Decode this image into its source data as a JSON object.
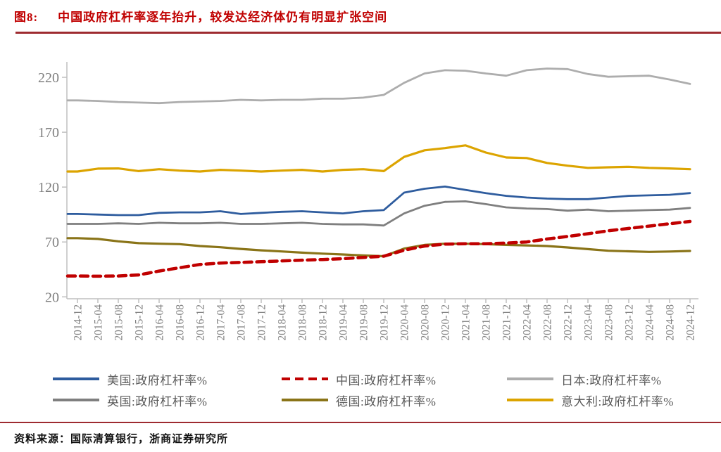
{
  "title": {
    "prefix": "图8:",
    "text": "中国政府杠杆率逐年抬升，较发达经济体仍有明显扩张空间"
  },
  "source": {
    "prefix": "资料来源：",
    "text": "国际清算银行，浙商证券研究所"
  },
  "colors": {
    "title_red": "#c00000",
    "rule_red": "#9e2b30",
    "axis_gray": "#bfbfbf",
    "tick_text_gray": "#7f7f7f",
    "legend_text_gray": "#595959"
  },
  "chart_data": {
    "type": "line",
    "title": "",
    "xlabel": "",
    "ylabel": "",
    "ylim": [
      20,
      220
    ],
    "yticks": [
      20,
      70,
      120,
      170,
      220
    ],
    "grid": false,
    "legend_position": "bottom",
    "x_labels": [
      "2014-12",
      "2015-04",
      "2015-08",
      "2015-12",
      "2016-04",
      "2016-08",
      "2016-12",
      "2017-04",
      "2017-08",
      "2017-12",
      "2018-04",
      "2018-08",
      "2018-12",
      "2019-04",
      "2019-08",
      "2019-12",
      "2020-04",
      "2020-08",
      "2020-12",
      "2021-04",
      "2021-08",
      "2021-12",
      "2022-04",
      "2022-08",
      "2022-12",
      "2023-04",
      "2023-08",
      "2023-12",
      "2024-04",
      "2024-08",
      "2024-12"
    ],
    "series": [
      {
        "key": "us",
        "name": "美国:政府杠杆率%",
        "color": "#2e5c9e",
        "width": 2.8,
        "dash": null,
        "values": [
          95.5,
          95,
          94.5,
          94.5,
          96.5,
          97,
          97,
          98,
          95.5,
          96.5,
          97.5,
          98,
          97,
          96,
          98,
          99,
          115,
          118.5,
          120.5,
          117.5,
          114.5,
          112,
          110.5,
          109.5,
          109,
          109,
          110.5,
          112,
          112.5,
          113,
          114.5
        ]
      },
      {
        "key": "china",
        "name": "中国:政府杠杆率%",
        "color": "#c00000",
        "width": 4.5,
        "dash": "11,7",
        "values": [
          39,
          38.8,
          39,
          40,
          43.5,
          46.5,
          49.5,
          50.8,
          51.4,
          52,
          52.7,
          53.4,
          54,
          54.8,
          55.9,
          57,
          62.5,
          66.3,
          68,
          68.4,
          68.4,
          69,
          70,
          72.7,
          75,
          77.5,
          80.2,
          82.4,
          84.5,
          86.6,
          88.7
        ]
      },
      {
        "key": "japan",
        "name": "日本:政府杠杆率%",
        "color": "#adadad",
        "width": 2.8,
        "dash": null,
        "values": [
          199,
          198.5,
          197.5,
          197,
          196.5,
          197.5,
          198,
          198.5,
          199.5,
          199,
          199.5,
          199.5,
          200.5,
          200.5,
          201.5,
          204,
          215,
          223.5,
          226.5,
          226,
          223.5,
          221.5,
          226.5,
          228,
          227.5,
          223,
          220.5,
          221,
          221.5,
          218,
          214
        ]
      },
      {
        "key": "uk",
        "name": "英国:政府杠杆率%",
        "color": "#7f7f7f",
        "width": 2.8,
        "dash": null,
        "values": [
          86.5,
          86.5,
          87,
          86.5,
          87.5,
          87,
          87,
          87.5,
          86.5,
          86.5,
          87,
          87.5,
          86.5,
          86,
          86,
          85,
          96,
          103,
          106.5,
          107,
          104.5,
          101.5,
          100.5,
          100,
          98.5,
          99.5,
          98,
          98.5,
          99,
          99.5,
          101
        ]
      },
      {
        "key": "germany",
        "name": "德国:政府杠杆率%",
        "color": "#8a7418",
        "width": 3.2,
        "dash": null,
        "values": [
          73.5,
          72.8,
          70.6,
          68.9,
          68.4,
          68,
          66.3,
          65.2,
          63.7,
          62.4,
          61.4,
          60.3,
          59.4,
          58.6,
          57.7,
          57,
          64,
          67.3,
          68.4,
          68.4,
          68,
          67.3,
          66.9,
          66.3,
          65,
          63.5,
          62,
          61.5,
          61,
          61.3,
          61.8
        ]
      },
      {
        "key": "italy",
        "name": "意大利:政府杠杆率%",
        "color": "#dca400",
        "width": 3.2,
        "dash": null,
        "values": [
          134.2,
          136.8,
          137,
          134.6,
          136.3,
          135,
          134.2,
          135.7,
          135,
          134.2,
          135,
          135.7,
          134.2,
          135.7,
          136.3,
          134.6,
          147.5,
          153.5,
          155.5,
          158,
          151.5,
          147,
          146.5,
          142,
          139.5,
          137.5,
          138,
          138.5,
          137.5,
          137,
          136.3
        ]
      }
    ]
  }
}
